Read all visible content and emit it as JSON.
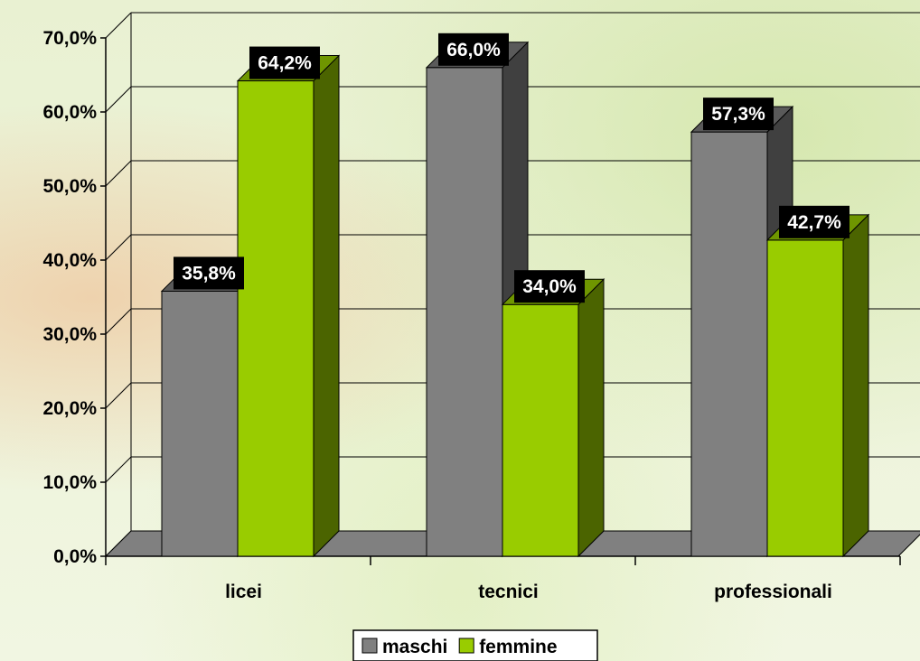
{
  "chart_data": {
    "type": "bar",
    "categories": [
      "licei",
      "tecnici",
      "professionali"
    ],
    "series": [
      {
        "name": "maschi",
        "values": [
          35.8,
          66.0,
          57.3
        ],
        "labels": [
          "35,8%",
          "66,0%",
          "57,3%"
        ]
      },
      {
        "name": "femmine",
        "values": [
          64.2,
          34.0,
          42.7
        ],
        "labels": [
          "64,2%",
          "34,0%",
          "42,7%"
        ]
      }
    ],
    "y_ticks": [
      "0,0%",
      "10,0%",
      "20,0%",
      "30,0%",
      "40,0%",
      "50,0%",
      "60,0%",
      "70,0%"
    ],
    "ylim": [
      0,
      70
    ],
    "grid": true,
    "legend_position": "bottom",
    "style_3d": true,
    "colors": {
      "maschi": {
        "front": "#808080",
        "side": "#404040",
        "top": "#5a5a5a"
      },
      "femmine": {
        "front": "#99cc00",
        "side": "#4b6400",
        "top": "#6f9600"
      },
      "label_bg": "#000000",
      "floor": "#808080"
    }
  }
}
